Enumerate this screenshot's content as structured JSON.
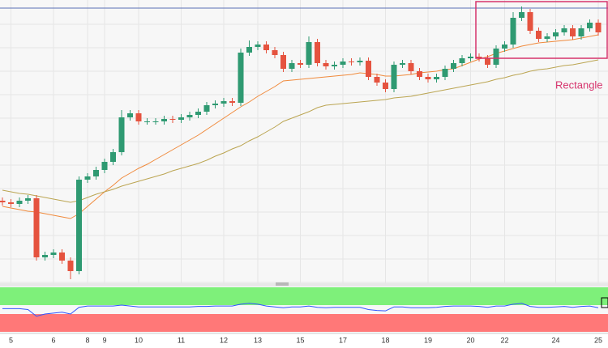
{
  "chart_data": {
    "type": "candlestick",
    "categories": [
      null,
      "5",
      null,
      null,
      null,
      null,
      "6",
      null,
      null,
      null,
      "8",
      null,
      "9",
      null,
      null,
      null,
      "10",
      null,
      null,
      null,
      null,
      "11",
      null,
      null,
      null,
      null,
      "12",
      null,
      null,
      null,
      "13",
      null,
      null,
      null,
      null,
      "15",
      null,
      null,
      null,
      null,
      "17",
      null,
      null,
      null,
      null,
      "18",
      null,
      null,
      null,
      null,
      "19",
      null,
      null,
      null,
      null,
      "20",
      null,
      null,
      null,
      "22",
      null,
      null,
      null,
      null,
      null,
      "24",
      null,
      null,
      null,
      null,
      "25"
    ],
    "open": [
      102,
      100,
      98,
      102,
      105,
      32,
      35,
      38,
      28,
      15,
      128,
      132,
      140,
      150,
      162,
      205,
      210,
      200,
      200,
      200,
      203,
      202,
      205,
      208,
      212,
      220,
      222,
      225,
      223,
      285,
      292,
      295,
      288,
      282,
      265,
      272,
      270,
      298,
      272,
      268,
      270,
      274,
      273,
      275,
      255,
      248,
      240,
      270,
      272,
      262,
      255,
      252,
      255,
      265,
      272,
      278,
      280,
      278,
      270,
      290,
      295,
      328,
      335,
      312,
      302,
      305,
      310,
      315,
      305,
      315,
      322
    ],
    "high": [
      106,
      104,
      106,
      109,
      109,
      39,
      42,
      42,
      32,
      132,
      136,
      144,
      154,
      166,
      214,
      214,
      214,
      204,
      204,
      207,
      207,
      209,
      212,
      216,
      224,
      226,
      229,
      229,
      290,
      300,
      299,
      299,
      292,
      286,
      276,
      276,
      305,
      302,
      276,
      274,
      278,
      278,
      279,
      279,
      259,
      252,
      274,
      276,
      276,
      266,
      259,
      259,
      269,
      276,
      282,
      284,
      284,
      282,
      294,
      299,
      335,
      342,
      339,
      316,
      309,
      314,
      319,
      319,
      319,
      326,
      326
    ],
    "low": [
      96,
      94,
      94,
      98,
      28,
      28,
      31,
      24,
      5,
      11,
      124,
      128,
      136,
      146,
      158,
      201,
      196,
      196,
      196,
      196,
      198,
      198,
      201,
      204,
      208,
      216,
      218,
      219,
      219,
      281,
      288,
      284,
      278,
      261,
      261,
      266,
      266,
      268,
      264,
      264,
      266,
      269,
      269,
      251,
      244,
      236,
      236,
      266,
      258,
      251,
      248,
      248,
      251,
      261,
      268,
      274,
      274,
      266,
      266,
      286,
      291,
      324,
      308,
      298,
      298,
      301,
      306,
      301,
      301,
      311,
      306
    ],
    "close": [
      100,
      98,
      102,
      105,
      32,
      35,
      38,
      28,
      15,
      128,
      132,
      140,
      150,
      162,
      205,
      210,
      200,
      200,
      200,
      203,
      202,
      205,
      208,
      212,
      220,
      222,
      225,
      223,
      285,
      292,
      295,
      288,
      282,
      265,
      272,
      270,
      298,
      272,
      268,
      270,
      274,
      273,
      275,
      255,
      248,
      240,
      270,
      272,
      262,
      255,
      252,
      255,
      265,
      272,
      278,
      280,
      278,
      270,
      290,
      295,
      328,
      335,
      312,
      302,
      305,
      310,
      315,
      305,
      315,
      322,
      310
    ],
    "up_color": "#2f9a72",
    "down_color": "#e5533f",
    "ylim": [
      0,
      342
    ],
    "lines": [
      {
        "color": "#f08a3c",
        "values": [
          95,
          93,
          91,
          89,
          88,
          86,
          84,
          82,
          80,
          86,
          95,
          104,
          113,
          121,
          130,
          136,
          142,
          147,
          153,
          159,
          165,
          171,
          177,
          183,
          190,
          197,
          204,
          211,
          218,
          224,
          231,
          237,
          243,
          250,
          251,
          252,
          253,
          254,
          255,
          256,
          257,
          258,
          260,
          259,
          258,
          256,
          256,
          257,
          258,
          260,
          261,
          262,
          264,
          265,
          269,
          273,
          277,
          280,
          284,
          287,
          290,
          293,
          295,
          297,
          298,
          299,
          300,
          301,
          303,
          305,
          307
        ]
      },
      {
        "color": "#bba552",
        "values": [
          115,
          113,
          111,
          110,
          108,
          106,
          104,
          102,
          100,
          102,
          106,
          110,
          113,
          116,
          120,
          123,
          126,
          129,
          132,
          135,
          139,
          142,
          145,
          148,
          152,
          157,
          161,
          166,
          170,
          176,
          181,
          187,
          193,
          200,
          204,
          208,
          212,
          217,
          220,
          221,
          222,
          223,
          224,
          225,
          226,
          227,
          229,
          230,
          231,
          233,
          235,
          237,
          239,
          241,
          243,
          245,
          247,
          249,
          252,
          254,
          257,
          259,
          262,
          264,
          265,
          267,
          269,
          270,
          272,
          274,
          276
        ]
      }
    ],
    "rectangle": {
      "label": "Rectangle",
      "color": "#d6336c",
      "from": 56,
      "low": 278,
      "high": 348
    },
    "oscillator": {
      "color": "#2f55ff",
      "ylim": [
        0,
        100
      ],
      "values": [
        52,
        52,
        52,
        50,
        35,
        40,
        42,
        44,
        40,
        55,
        58,
        58,
        58,
        58,
        60,
        58,
        56,
        56,
        56,
        56,
        56,
        56,
        56,
        57,
        57,
        58,
        58,
        58,
        62,
        64,
        62,
        58,
        56,
        54,
        56,
        56,
        58,
        55,
        54,
        55,
        55,
        55,
        55,
        50,
        48,
        47,
        56,
        56,
        54,
        54,
        54,
        55,
        57,
        58,
        58,
        58,
        57,
        55,
        58,
        58,
        62,
        64,
        57,
        55,
        55,
        56,
        57,
        55,
        57,
        58,
        54
      ]
    }
  }
}
